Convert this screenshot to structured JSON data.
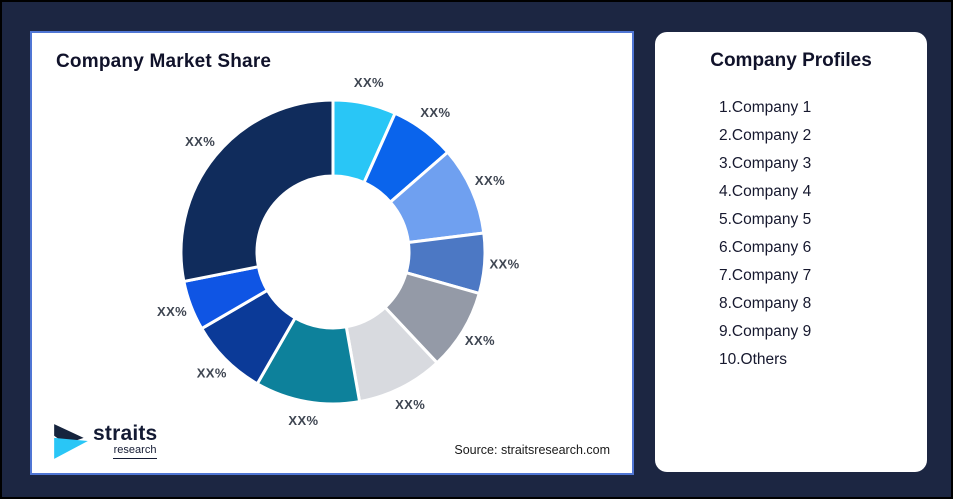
{
  "canvas": {
    "background_color": "#1C2642",
    "outer_border_color": "#000000"
  },
  "market_share_panel": {
    "title": "Company Market Share",
    "source": "Source: straitsresearch.com",
    "panel_border_color": "#5076D4",
    "logo": {
      "brand": "straits",
      "sub": "research",
      "mark_navy": "#16243D",
      "mark_cyan": "#29C6F6"
    }
  },
  "profiles_panel": {
    "title": "Company Profiles",
    "items": [
      "1.Company 1",
      "2.Company 2",
      "3.Company 3",
      "4.Company 4",
      "5.Company 5",
      "6.Company 6",
      "7.Company 7",
      "8.Company 8",
      "9.Company 9",
      "10.Others"
    ]
  },
  "chart_data": {
    "type": "pie",
    "subtype": "donut",
    "title": "Company Market Share",
    "legend_position": "none",
    "direction": "clockwise",
    "start_angle_deg": 0,
    "inner_radius_ratio": 0.5,
    "gap_color": "#FFFFFF",
    "label_color": "#3E4551",
    "segments": [
      {
        "label": "XX%",
        "estimated_share_pct": 6.7,
        "color": "#29C6F6"
      },
      {
        "label": "XX%",
        "estimated_share_pct": 6.9,
        "color": "#0A64EC"
      },
      {
        "label": "XX%",
        "estimated_share_pct": 9.4,
        "color": "#6FA0F0"
      },
      {
        "label": "XX%",
        "estimated_share_pct": 6.4,
        "color": "#4C78C4"
      },
      {
        "label": "XX%",
        "estimated_share_pct": 8.6,
        "color": "#949AA7"
      },
      {
        "label": "XX%",
        "estimated_share_pct": 9.2,
        "color": "#D8DADF"
      },
      {
        "label": "XX%",
        "estimated_share_pct": 11.1,
        "color": "#0D819B"
      },
      {
        "label": "XX%",
        "estimated_share_pct": 8.3,
        "color": "#0B3A98"
      },
      {
        "label": "XX%",
        "estimated_share_pct": 5.3,
        "color": "#0F55E4"
      },
      {
        "label": "XX%",
        "estimated_share_pct": 28.1,
        "color": "#102C5C"
      }
    ]
  }
}
